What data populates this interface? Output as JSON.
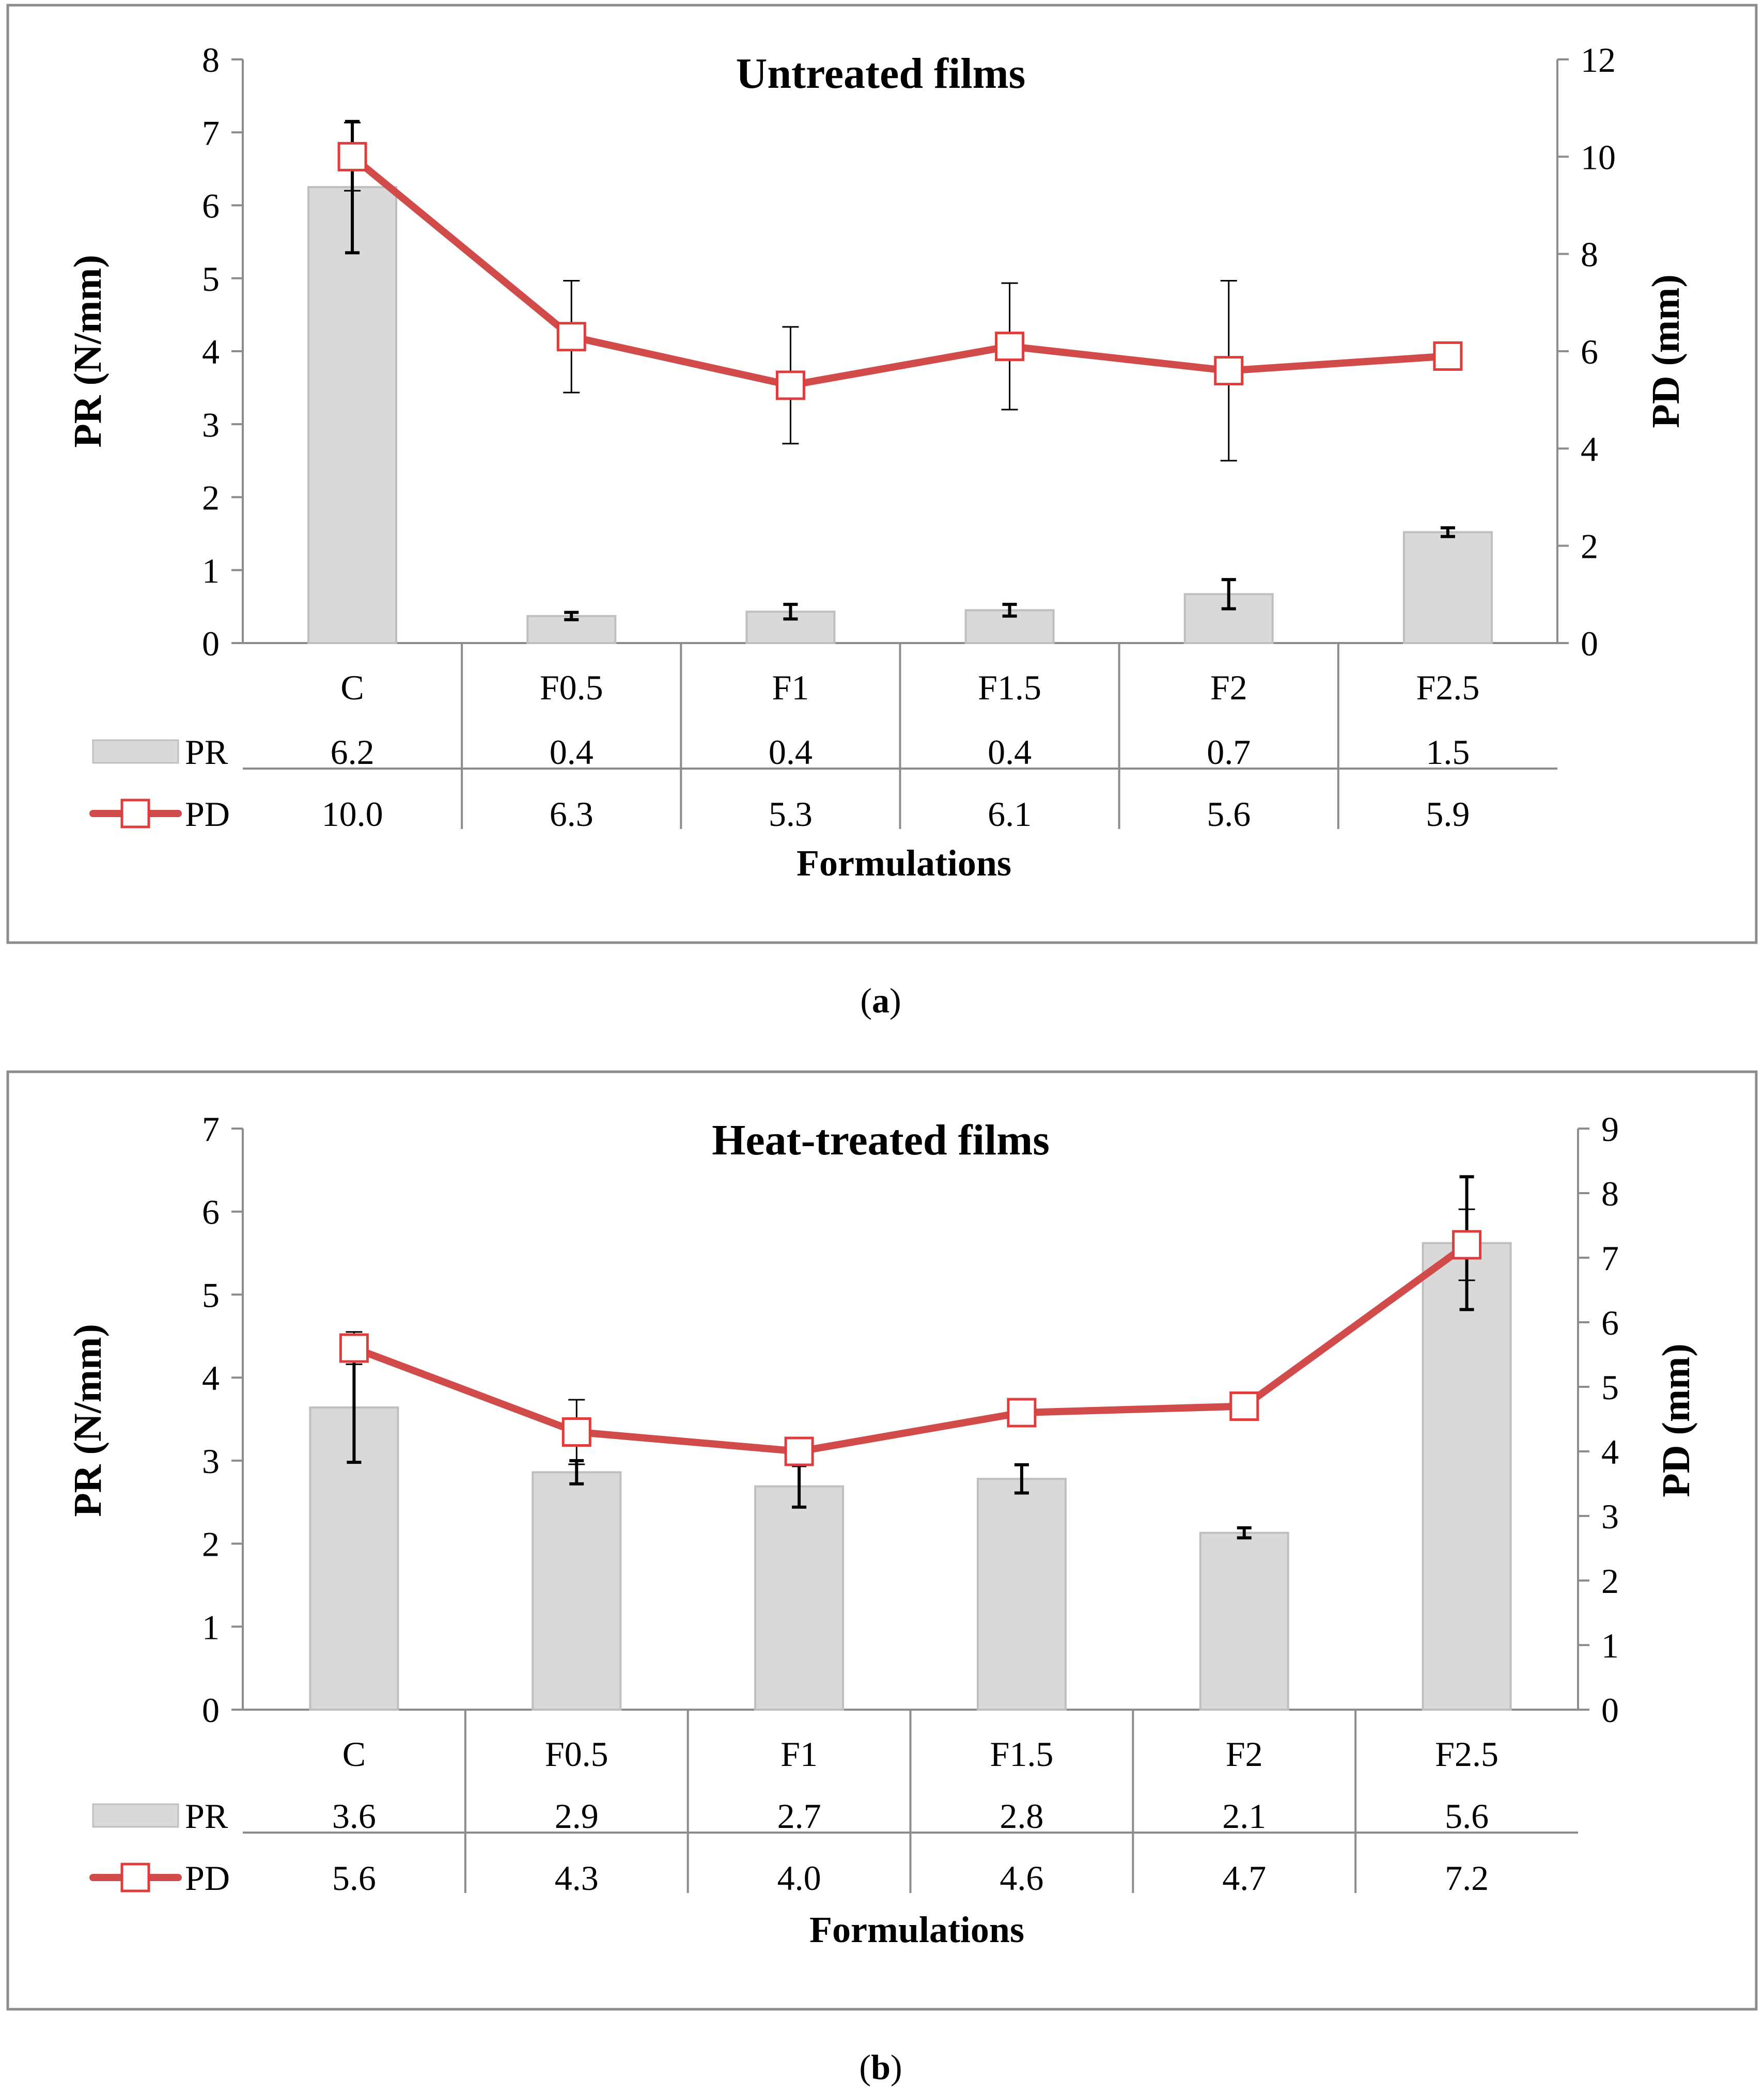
{
  "colors": {
    "bar": "#d9d9d9",
    "bar_edge": "#bfbfbf",
    "line": "#d24b4b",
    "marker": "#e03c3c",
    "frame": "#8c8c8c"
  },
  "chart_data": [
    {
      "type": "bar+line",
      "caption_letter": "a",
      "title": "Untreated films",
      "xlabel": "Formulations",
      "ylabel_left": "PR (N/mm)",
      "ylabel_right": "PD (mm)",
      "ylim_left": [
        0,
        8
      ],
      "yticks_left": [
        "0",
        "1",
        "2",
        "3",
        "4",
        "5",
        "6",
        "7",
        "8"
      ],
      "ylim_right": [
        0,
        12
      ],
      "yticks_right": [
        "0",
        "2",
        "4",
        "6",
        "8",
        "10",
        "12"
      ],
      "categories": [
        "C",
        "F0.5",
        "F1",
        "F1.5",
        "F2",
        "F2.5"
      ],
      "series": [
        {
          "name": "PR",
          "kind": "bar",
          "axis": "left",
          "values": [
            6.25,
            0.37,
            0.43,
            0.45,
            0.67,
            1.52
          ],
          "errors": [
            0.9,
            0.05,
            0.1,
            0.08,
            0.2,
            0.06
          ],
          "labels": [
            "6.2",
            "0.4",
            "0.4",
            "0.4",
            "0.7",
            "1.5"
          ]
        },
        {
          "name": "PD",
          "kind": "line",
          "axis": "right",
          "values": [
            10.0,
            6.3,
            5.3,
            6.1,
            5.6,
            5.9
          ],
          "errors": [
            0.7,
            1.15,
            1.2,
            1.3,
            1.85,
            0.15
          ],
          "labels": [
            "10.0",
            "6.3",
            "5.3",
            "6.1",
            "5.6",
            "5.9"
          ]
        }
      ]
    },
    {
      "type": "bar+line",
      "caption_letter": "b",
      "title": "Heat-treated films",
      "xlabel": "Formulations",
      "ylabel_left": "PR (N/mm)",
      "ylabel_right": "PD (mm)",
      "ylim_left": [
        0,
        7
      ],
      "yticks_left": [
        "0",
        "1",
        "2",
        "3",
        "4",
        "5",
        "6",
        "7"
      ],
      "ylim_right": [
        0,
        9
      ],
      "yticks_right": [
        "0",
        "1",
        "2",
        "3",
        "4",
        "5",
        "6",
        "7",
        "8",
        "9"
      ],
      "categories": [
        "C",
        "F0.5",
        "F1",
        "F1.5",
        "F2",
        "F2.5"
      ],
      "series": [
        {
          "name": "PR",
          "kind": "bar",
          "axis": "left",
          "values": [
            3.64,
            2.86,
            2.69,
            2.78,
            2.13,
            5.62
          ],
          "errors": [
            0.66,
            0.14,
            0.25,
            0.17,
            0.06,
            0.8
          ],
          "labels": [
            "3.6",
            "2.9",
            "2.7",
            "2.8",
            "2.1",
            "5.6"
          ]
        },
        {
          "name": "PD",
          "kind": "line",
          "axis": "right",
          "values": [
            5.6,
            4.3,
            4.0,
            4.6,
            4.7,
            7.2
          ],
          "errors": [
            0.25,
            0.5,
            0.2,
            0.15,
            0.05,
            0.55
          ],
          "labels": [
            "5.6",
            "4.3",
            "4.0",
            "4.6",
            "4.7",
            "7.2"
          ]
        }
      ]
    }
  ]
}
